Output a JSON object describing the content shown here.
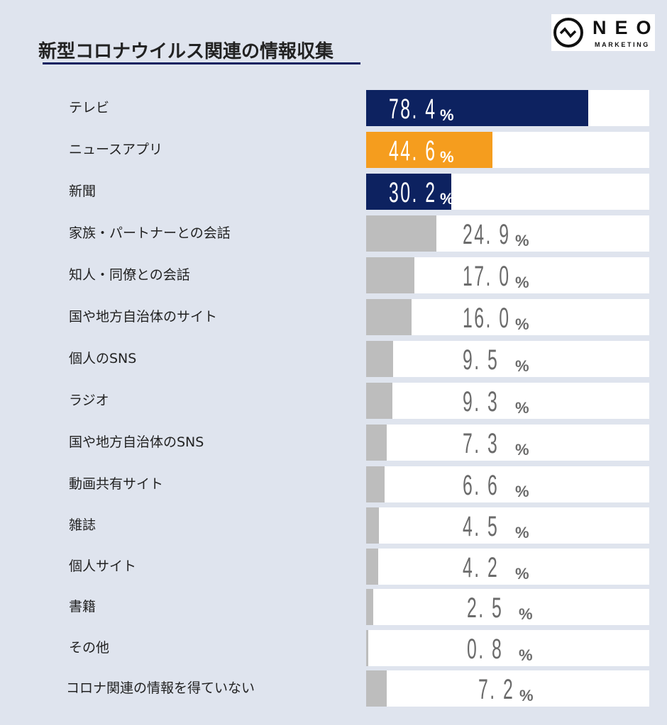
{
  "title": "新型コロナウイルス関連の情報収集",
  "logo": {
    "text": "NEO",
    "subtext": "MARKETING"
  },
  "colors": {
    "navy": "#0d2260",
    "orange": "#f59d1e",
    "gray": "#bdbdbd",
    "track": "#ffffff"
  },
  "chart_data": {
    "type": "bar",
    "orientation": "horizontal",
    "title": "新型コロナウイルス関連の情報収集",
    "unit": "%",
    "xlim": [
      0,
      100
    ],
    "categories": [
      "テレビ",
      "ニュースアプリ",
      "新聞",
      "家族・パートナーとの会話",
      "知人・同僚との会話",
      "国や地方自治体のサイト",
      "個人のSNS",
      "ラジオ",
      "国や地方自治体のSNS",
      "動画共有サイト",
      "雑誌",
      "個人サイト",
      "書籍",
      "その他",
      "コロナ関連の情報を得ていない"
    ],
    "values": [
      78.4,
      44.6,
      30.2,
      24.9,
      17.0,
      16.0,
      9.5,
      9.3,
      7.3,
      6.6,
      4.5,
      4.2,
      2.5,
      0.8,
      7.2
    ],
    "labels": [
      "78. 4",
      "44. 6",
      "30. 2",
      "24. 9",
      "17. 0",
      "16. 0",
      "9. 5",
      "9. 3",
      "7. 3",
      "6. 6",
      "4. 5",
      "4. 2",
      "2. 5",
      "0. 8",
      "7. 2"
    ],
    "bar_colors": [
      "navy",
      "orange",
      "navy",
      "gray",
      "gray",
      "gray",
      "gray",
      "gray",
      "gray",
      "gray",
      "gray",
      "gray",
      "gray",
      "gray",
      "gray"
    ],
    "percent_sign": "%"
  }
}
